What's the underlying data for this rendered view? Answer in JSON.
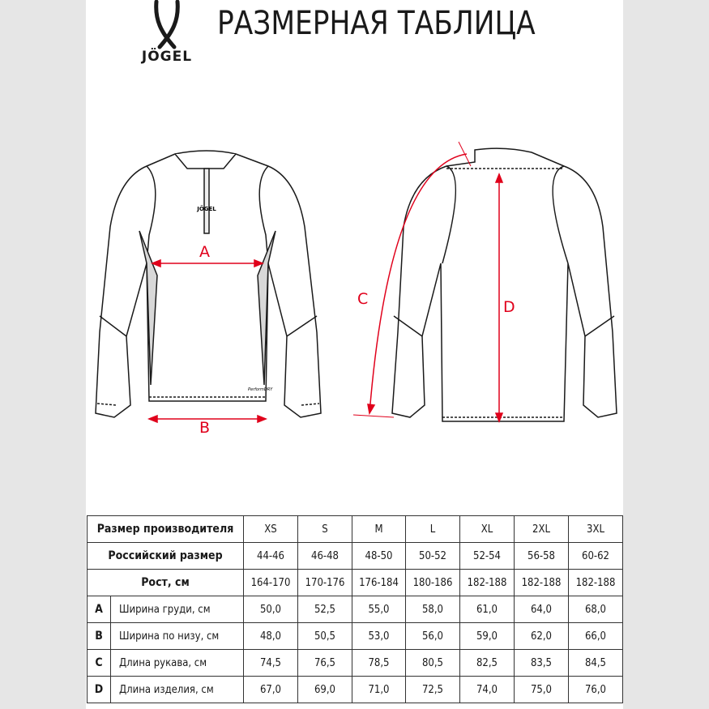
{
  "header": {
    "brand": "JÖGEL",
    "title": "РАЗМЕРНАЯ ТАБЛИЦА"
  },
  "drawing": {
    "labels": [
      "A",
      "B",
      "C",
      "D"
    ],
    "chest_logo": "JÖGEL",
    "tag": "PerformDRY",
    "accent": "#e0001b"
  },
  "table": {
    "head": {
      "label": "Размер производителя",
      "sizes": [
        "XS",
        "S",
        "M",
        "L",
        "XL",
        "2XL",
        "3XL"
      ]
    },
    "ru": {
      "label": "Российский размер",
      "values": [
        "44-46",
        "46-48",
        "48-50",
        "50-52",
        "52-54",
        "56-58",
        "60-62"
      ]
    },
    "height": {
      "label": "Рост, см",
      "values": [
        "164-170",
        "170-176",
        "176-184",
        "180-186",
        "182-188",
        "182-188",
        "182-188"
      ]
    },
    "rows": [
      {
        "letter": "A",
        "label": "Ширина груди, см",
        "values": [
          "50,0",
          "52,5",
          "55,0",
          "58,0",
          "61,0",
          "64,0",
          "68,0"
        ]
      },
      {
        "letter": "B",
        "label": "Ширина по низу, см",
        "values": [
          "48,0",
          "50,5",
          "53,0",
          "56,0",
          "59,0",
          "62,0",
          "66,0"
        ]
      },
      {
        "letter": "C",
        "label": "Длина рукава, см",
        "values": [
          "74,5",
          "76,5",
          "78,5",
          "80,5",
          "82,5",
          "83,5",
          "84,5"
        ]
      },
      {
        "letter": "D",
        "label": "Длина изделия, см",
        "values": [
          "67,0",
          "69,0",
          "71,0",
          "72,5",
          "74,0",
          "75,0",
          "76,0"
        ]
      }
    ]
  }
}
